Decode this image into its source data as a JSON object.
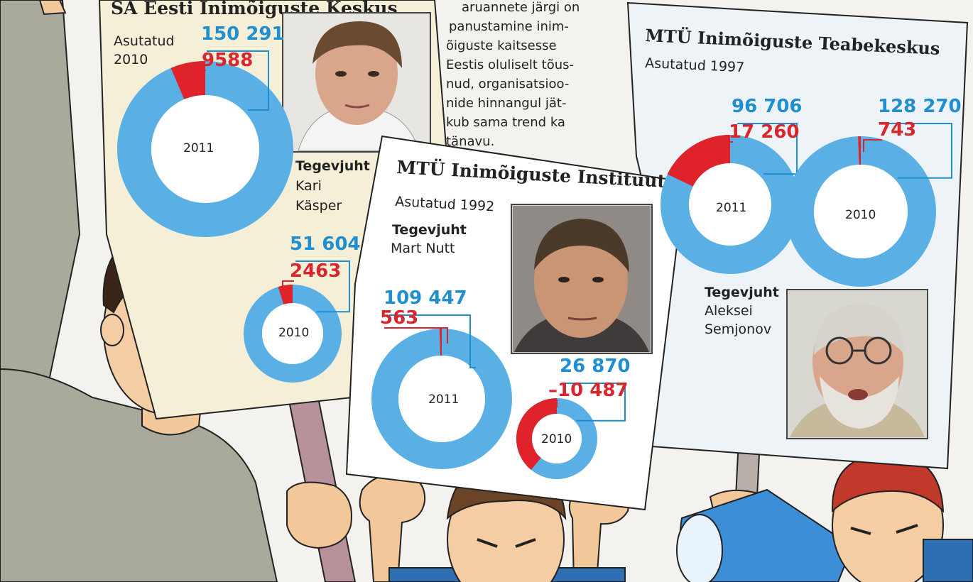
{
  "colors": {
    "donut_blue": "#5ab0e4",
    "donut_red": "#e0232b",
    "value_blue": "#1f8fd0",
    "value_red": "#d8262c",
    "sign_cream": "#f6efd8",
    "sign_white": "#ffffff",
    "sign_lightblue": "#eef3f8"
  },
  "article_text": [
    "aruanne­te järgi on",
    "panustamine inim-",
    "õiguste kaitsesse",
    "Eestis oluliselt tõus-",
    "nud, organisatsioo-",
    "nide hinnangul jät-",
    "kub sama trend ka",
    "tänavu."
  ],
  "signs": [
    {
      "title": "SA Eesti Inimõiguste Keskus",
      "founded": [
        "Asutatud",
        "2010"
      ],
      "director_label": "Tegevjuht",
      "director_name": [
        "Kari",
        "Käsper"
      ],
      "photo": "portrait-kari-kasper"
    },
    {
      "title": "MTÜ Inimõiguste Instituut",
      "founded": [
        "Asutatud 1992"
      ],
      "director_label": "Tegevjuht",
      "director_name": [
        "Mart Nutt"
      ],
      "photo": "portrait-mart-nutt"
    },
    {
      "title": "MTÜ Inimõiguste Teabekeskus",
      "founded": [
        "Asutatud 1997"
      ],
      "director_label": "Tegevjuht",
      "director_name": [
        "Aleksei",
        "Semjonov"
      ],
      "photo": "portrait-aleksei-semjonov"
    }
  ],
  "chart_data": [
    {
      "type": "pie",
      "organization": "SA Eesti Inimõiguste Keskus",
      "year_label": "2011",
      "total": "150 291",
      "highlight": "9588",
      "total_value": 150291,
      "highlight_value": 9588
    },
    {
      "type": "pie",
      "organization": "SA Eesti Inimõiguste Keskus",
      "year_label": "2010",
      "total": "51 604",
      "highlight": "2463",
      "total_value": 51604,
      "highlight_value": 2463
    },
    {
      "type": "pie",
      "organization": "MTÜ Inimõiguste Instituut",
      "year_label": "2011",
      "total": "109 447",
      "highlight": "563",
      "total_value": 109447,
      "highlight_value": 563
    },
    {
      "type": "pie",
      "organization": "MTÜ Inimõiguste Instituut",
      "year_label": "2010",
      "total": "26 870",
      "highlight": "–10 487",
      "total_value": 26870,
      "highlight_value": -10487
    },
    {
      "type": "pie",
      "organization": "MTÜ Inimõiguste Teabekeskus",
      "year_label": "2011",
      "total": "96 706",
      "highlight": "17 260",
      "total_value": 96706,
      "highlight_value": 17260
    },
    {
      "type": "pie",
      "organization": "MTÜ Inimõiguste Teabekeskus",
      "year_label": "2010",
      "total": "128 270",
      "highlight": "743",
      "total_value": 128270,
      "highlight_value": 743
    }
  ]
}
